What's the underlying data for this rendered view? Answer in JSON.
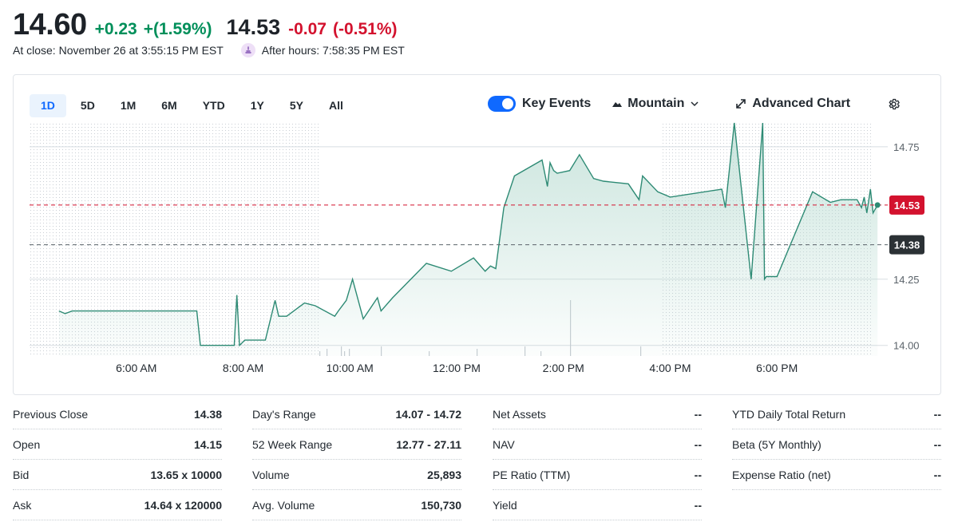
{
  "quote": {
    "price": "14.60",
    "change": "+0.23",
    "change_pct": "+(1.59%)",
    "after_price": "14.53",
    "after_change": "-0.07",
    "after_change_pct": "(-0.51%)",
    "close_text": "At close: November 26 at 3:55:15 PM EST",
    "after_hours_text": "After hours: 7:58:35 PM EST",
    "colors": {
      "positive": "#008f5a",
      "negative": "#d3122e",
      "accent": "#0f69ff",
      "line": "#2d8a74"
    }
  },
  "range_tabs": [
    "1D",
    "5D",
    "1M",
    "6M",
    "YTD",
    "1Y",
    "5Y",
    "All"
  ],
  "active_range": "1D",
  "controls": {
    "key_events": "Key Events",
    "key_events_on": true,
    "chart_type": "Mountain",
    "advanced": "Advanced Chart",
    "settings_icon": "gear-icon"
  },
  "chart_data": {
    "type": "area",
    "x_ticks": [
      "6:00 AM",
      "8:00 AM",
      "10:00 AM",
      "12:00 PM",
      "2:00 PM",
      "4:00 PM",
      "6:00 PM"
    ],
    "y_ticks": [
      "14.75",
      "14.25",
      "14.00"
    ],
    "ylim": [
      13.96,
      14.84
    ],
    "xlim_hours": [
      4,
      20
    ],
    "grid": true,
    "last_price_label": "14.53",
    "last_price": 14.53,
    "prev_close_label": "14.38",
    "prev_close": 14.38,
    "series": [
      {
        "x": [
          "4:33 AM",
          "4:40 AM",
          "4:48 AM",
          "7:08 AM",
          "7:12 AM",
          "7:50 AM",
          "7:53 AM",
          "7:56 AM",
          "8:02 AM",
          "8:25 AM",
          "8:36 AM",
          "8:40 AM",
          "8:49 AM",
          "9:09 AM",
          "9:21 AM",
          "9:43 AM",
          "9:47 AM",
          "9:56 AM",
          "10:03 AM",
          "10:15 AM",
          "10:31 AM",
          "10:35 AM",
          "10:48 AM",
          "11:26 AM",
          "11:54 AM",
          "12:19 PM",
          "12:32 PM",
          "12:38 PM",
          "12:44 PM",
          "12:53 PM",
          "1:05 PM",
          "1:36 PM",
          "1:42 PM",
          "1:45 PM",
          "1:49 PM",
          "1:53 PM",
          "2:07 PM",
          "2:18 PM",
          "2:34 PM",
          "2:45 PM",
          "3:13 PM",
          "3:19 PM",
          "3:25 PM",
          "3:29 PM",
          "3:46 PM",
          "4:00 PM",
          "4:58 PM",
          "5:02 PM",
          "5:12 PM",
          "5:31 PM",
          "5:44 PM",
          "5:46 PM",
          "5:48 PM",
          "6:00 PM",
          "6:40 PM",
          "7:00 PM",
          "7:12 PM",
          "7:30 PM",
          "7:35 PM",
          "7:38 PM",
          "7:41 PM",
          "7:45 PM",
          "7:48 PM",
          "7:53 PM"
        ],
        "values": [
          14.13,
          14.12,
          14.13,
          14.13,
          14.0,
          14.0,
          14.19,
          14.0,
          14.02,
          14.02,
          14.17,
          14.11,
          14.11,
          14.16,
          14.15,
          14.11,
          14.13,
          14.17,
          14.25,
          14.1,
          14.18,
          14.13,
          14.18,
          14.31,
          14.28,
          14.33,
          14.28,
          14.3,
          14.29,
          14.52,
          14.64,
          14.7,
          14.6,
          14.69,
          14.66,
          14.65,
          14.66,
          14.72,
          14.63,
          14.62,
          14.61,
          14.58,
          14.55,
          14.64,
          14.58,
          14.56,
          14.59,
          14.52,
          14.84,
          14.25,
          14.84,
          14.25,
          14.26,
          14.26,
          14.58,
          14.54,
          14.55,
          14.55,
          14.52,
          14.56,
          14.5,
          14.59,
          14.5,
          14.53
        ]
      }
    ]
  },
  "stats": [
    [
      {
        "label": "Previous Close",
        "value": "14.38"
      },
      {
        "label": "Open",
        "value": "14.15"
      },
      {
        "label": "Bid",
        "value": "13.65 x 10000"
      },
      {
        "label": "Ask",
        "value": "14.64 x 120000"
      }
    ],
    [
      {
        "label": "Day's Range",
        "value": "14.07 - 14.72"
      },
      {
        "label": "52 Week Range",
        "value": "12.77 - 27.11"
      },
      {
        "label": "Volume",
        "value": "25,893"
      },
      {
        "label": "Avg. Volume",
        "value": "150,730"
      }
    ],
    [
      {
        "label": "Net Assets",
        "value": "--"
      },
      {
        "label": "NAV",
        "value": "--"
      },
      {
        "label": "PE Ratio (TTM)",
        "value": "--"
      },
      {
        "label": "Yield",
        "value": "--"
      }
    ],
    [
      {
        "label": "YTD Daily Total Return",
        "value": "--"
      },
      {
        "label": "Beta (5Y Monthly)",
        "value": "--"
      },
      {
        "label": "Expense Ratio (net)",
        "value": "--"
      }
    ]
  ]
}
